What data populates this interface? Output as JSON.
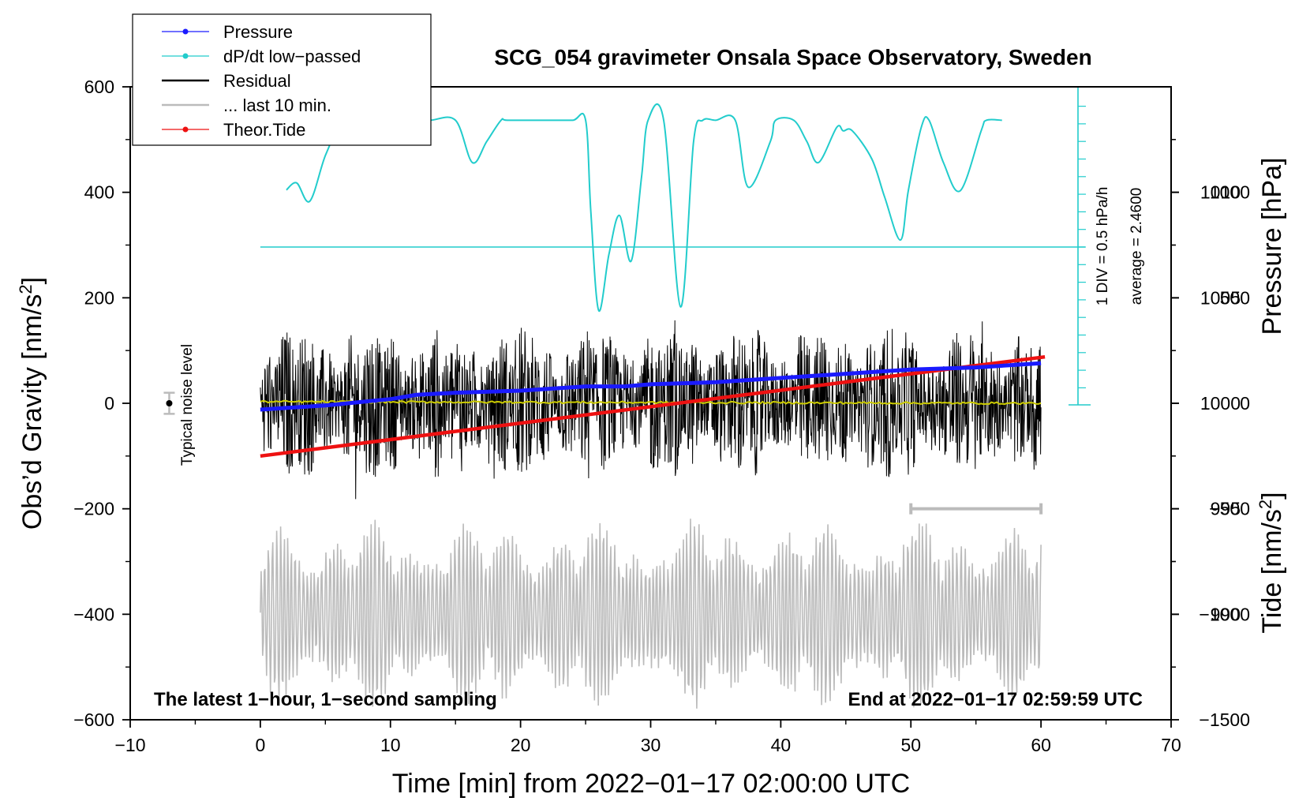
{
  "chart_data": {
    "type": "line",
    "title": "SCG_054 gravimeter Onsala Space Observatory, Sweden",
    "xlabel": "Time [min] from 2022−01−17 02:00:00 UTC",
    "ylabel_left": "Obs’d Gravity [nm/s",
    "ylabel_left_sup": "2",
    "ylabel_left_close": "]",
    "ylabel_right_pressure": "Pressure [hPa]",
    "ylabel_right_tide": "Tide [nm/s",
    "ylabel_right_tide_sup": "2",
    "ylabel_right_tide_close": "]",
    "xlim": [
      -10,
      70
    ],
    "ylim_left": [
      -600,
      600
    ],
    "pressure_range": [
      985,
      1015
    ],
    "tide_range": [
      -1500,
      1500
    ],
    "x_ticks": [
      {
        "value": -10,
        "label": "−10"
      },
      {
        "value": 0,
        "label": "0"
      },
      {
        "value": 10,
        "label": "10"
      },
      {
        "value": 20,
        "label": "20"
      },
      {
        "value": 30,
        "label": "30"
      },
      {
        "value": 40,
        "label": "40"
      },
      {
        "value": 50,
        "label": "50"
      },
      {
        "value": 60,
        "label": "60"
      },
      {
        "value": 70,
        "label": "70"
      }
    ],
    "y_ticks_left": [
      {
        "value": 600,
        "label": "600"
      },
      {
        "value": 400,
        "label": "400"
      },
      {
        "value": 200,
        "label": "200"
      },
      {
        "value": 0,
        "label": "0"
      },
      {
        "value": -200,
        "label": "−200"
      },
      {
        "value": -400,
        "label": "−400"
      },
      {
        "value": -600,
        "label": "−600"
      }
    ],
    "pressure_ticks": [
      {
        "value": 1010,
        "label": "1010"
      },
      {
        "value": 1005,
        "label": "1005"
      },
      {
        "value": 1000,
        "label": "1000"
      },
      {
        "value": 995,
        "label": "995"
      },
      {
        "value": 990,
        "label": "990"
      }
    ],
    "tide_ticks": [
      {
        "value": 1000,
        "label": "1000"
      },
      {
        "value": 500,
        "label": "500"
      },
      {
        "value": 0,
        "label": "0"
      },
      {
        "value": -500,
        "label": "−500"
      },
      {
        "value": -1000,
        "label": "−1000"
      },
      {
        "value": -1500,
        "label": "−1500"
      }
    ],
    "legend": [
      {
        "label": "Pressure",
        "color": "#1a1aff",
        "marker": true
      },
      {
        "label": "dP/dt low−passed",
        "color": "#22cccc",
        "marker": true
      },
      {
        "label": "Residual",
        "color": "#000000",
        "marker": false
      },
      {
        "label": "... last 10 min.",
        "color": "#bbbbbb",
        "marker": false
      },
      {
        "label": "Theor.Tide",
        "color": "#ee1111",
        "marker": true
      }
    ],
    "colors": {
      "pressure": "#1a1aff",
      "dpdt": "#22cccc",
      "residual": "#000000",
      "last10": "#bbbbbb",
      "tide": "#ee1111",
      "residual_mean": "#cccc00"
    },
    "pressure_series": {
      "x": [
        0,
        5,
        10,
        12,
        15,
        20,
        25,
        28,
        30,
        35,
        40,
        45,
        50,
        55,
        60
      ],
      "values": [
        999.7,
        999.9,
        1000.2,
        1000.4,
        1000.5,
        1000.6,
        1000.8,
        1000.8,
        1000.9,
        1001.0,
        1001.2,
        1001.4,
        1001.6,
        1001.7,
        1001.9
      ]
    },
    "dpdt_series": {
      "x": [
        2,
        2.8,
        3.8,
        5.0,
        6.3,
        6.8,
        8,
        11,
        13,
        15,
        16.3,
        17.4,
        18.5,
        19,
        22,
        24,
        25.0,
        25.4,
        26.0,
        26.8,
        27.6,
        28.5,
        29.3,
        29.8,
        31.0,
        32.3,
        33.3,
        34.0,
        35,
        36.5,
        37.5,
        39.2,
        39.6,
        41,
        42.0,
        42.9,
        44.3,
        44.8,
        45.5,
        47.0,
        48.0,
        49.2,
        49.8,
        50.8,
        51.4,
        52.5,
        53.8,
        55.4,
        55.8,
        57
      ],
      "values": [
        1.62,
        1.82,
        1.3,
        2.6,
        3.6,
        3.6,
        3.6,
        3.6,
        3.6,
        3.6,
        2.4,
        3.0,
        3.6,
        3.6,
        3.6,
        3.6,
        3.6,
        1.0,
        -1.8,
        -0.2,
        0.9,
        -0.4,
        2.0,
        3.6,
        3.6,
        -1.7,
        3.0,
        3.6,
        3.6,
        3.6,
        1.7,
        3.0,
        3.6,
        3.6,
        3.0,
        2.4,
        3.4,
        3.3,
        3.3,
        2.5,
        1.4,
        0.2,
        1.6,
        3.4,
        3.6,
        2.4,
        1.6,
        3.3,
        3.6,
        3.6
      ]
    },
    "dpdt_scale": "1 DIV = 0.5 hPa/h",
    "dpdt_average": "average = 2.4600",
    "residual_amplitude": 150,
    "last10_amplitude": 180,
    "last10_offset": -400,
    "tide_series": {
      "x": [
        0,
        60.3
      ],
      "values": [
        -250,
        220
      ]
    },
    "noise_level": {
      "label": "Typical noise level",
      "x": -7,
      "value": 0,
      "error": 20
    },
    "last10_bracket": {
      "x_start": 50,
      "x_end": 60,
      "y": -200
    },
    "annotations": {
      "bottom_left": "The latest 1−hour, 1−second sampling",
      "bottom_right": "End at 2022−01−17 02:59:59 UTC"
    }
  }
}
